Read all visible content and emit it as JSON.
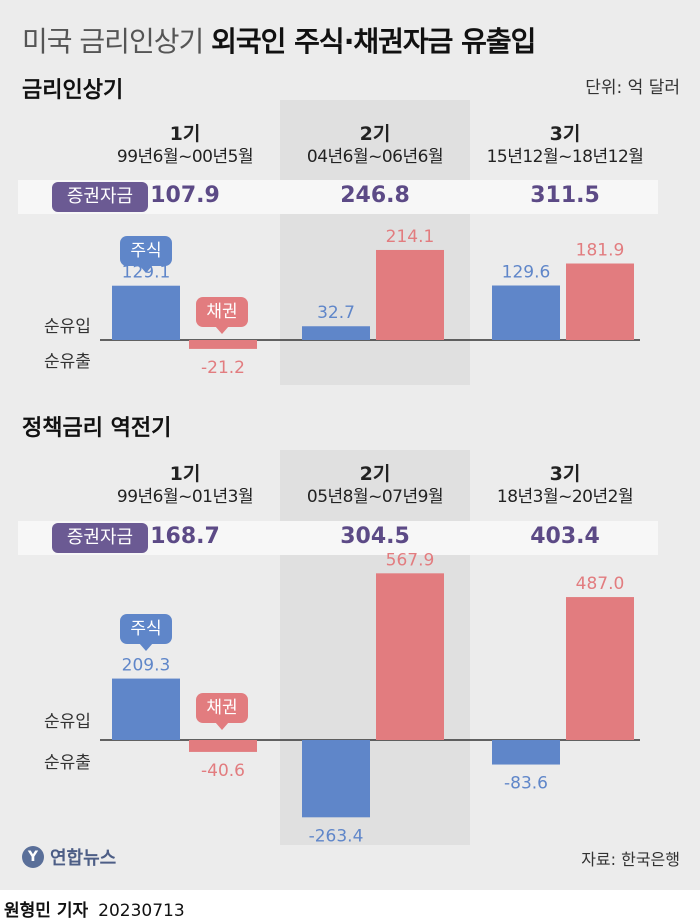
{
  "header": {
    "title_light": "미국 금리인상기",
    "title_bold": "외국인 주식·채권자금 유출입",
    "unit": "단위: 억 달러"
  },
  "labels": {
    "fund_badge": "증권자금",
    "stock": "주식",
    "bond": "채권",
    "inflow": "순유입",
    "outflow": "순유출"
  },
  "chart_data": [
    {
      "type": "bar",
      "title": "금리인상기",
      "categories": [
        "1기",
        "2기",
        "3기"
      ],
      "periods": [
        "99년6월~00년5월",
        "04년6월~06년6월",
        "15년12월~18년12월"
      ],
      "fund_totals": [
        "107.9",
        "246.8",
        "311.5"
      ],
      "series": [
        {
          "name": "주식",
          "values": [
            129.1,
            32.7,
            129.6
          ],
          "labels": [
            "129.1",
            "32.7",
            "129.6"
          ],
          "color": "#5f86c9"
        },
        {
          "name": "채권",
          "values": [
            -21.2,
            214.1,
            181.9
          ],
          "labels": [
            "-21.2",
            "214.1",
            "181.9"
          ],
          "color": "#e27c7f"
        }
      ]
    },
    {
      "type": "bar",
      "title": "정책금리 역전기",
      "categories": [
        "1기",
        "2기",
        "3기"
      ],
      "periods": [
        "99년6월~01년3월",
        "05년8월~07년9월",
        "18년3월~20년2월"
      ],
      "fund_totals": [
        "168.7",
        "304.5",
        "403.4"
      ],
      "series": [
        {
          "name": "주식",
          "values": [
            209.3,
            -263.4,
            -83.6
          ],
          "labels": [
            "209.3",
            "-263.4",
            "-83.6"
          ],
          "color": "#5f86c9"
        },
        {
          "name": "채권",
          "values": [
            -40.6,
            567.9,
            487.0
          ],
          "labels": [
            "-40.6",
            "567.9",
            "487.0"
          ],
          "color": "#e27c7f"
        }
      ]
    }
  ],
  "footer": {
    "logo": "연합뉴스",
    "logo_mark": "Y",
    "source": "자료: 한국은행",
    "reporter": "원형민 기자",
    "date": "20230713"
  }
}
